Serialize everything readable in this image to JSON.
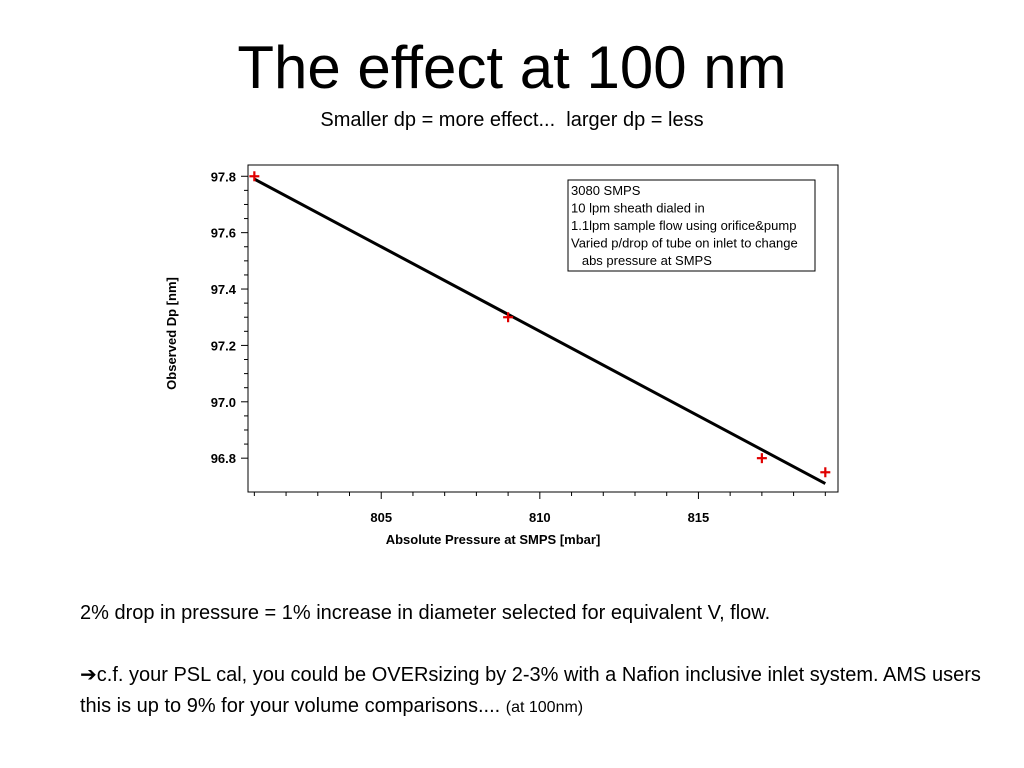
{
  "slide": {
    "title": "The effect at 100 nm",
    "subtitle": "Smaller dp = more effect...  larger dp = less"
  },
  "chart_data": {
    "type": "scatter",
    "xlabel": "Absolute Pressure at SMPS  [mbar]",
    "ylabel": "Observed Dp  [nm]",
    "xlim": [
      800.8,
      819.4
    ],
    "ylim": [
      96.68,
      97.84
    ],
    "x_ticks": [
      805,
      810,
      815
    ],
    "y_ticks": [
      96.8,
      97.0,
      97.2,
      97.4,
      97.6,
      97.8
    ],
    "y_tick_labels": [
      "96.8",
      "97.0",
      "97.2",
      "97.4",
      "97.6",
      "97.8"
    ],
    "series": [
      {
        "marker": "plus",
        "color": "#e00000",
        "x": [
          801.0,
          809.0,
          817.0,
          819.0
        ],
        "y": [
          97.8,
          97.3,
          96.8,
          96.75
        ]
      }
    ],
    "fit_line": {
      "color": "#000000",
      "x": [
        801.0,
        819.0
      ],
      "y": [
        97.79,
        96.71
      ]
    },
    "legend": {
      "placement": "top-right",
      "lines": [
        "3080 SMPS",
        "10 lpm sheath dialed in",
        "1.1lpm sample flow using orifice&pump",
        "Varied p/drop of tube on inlet to change",
        "   abs pressure at SMPS"
      ]
    },
    "grid": false
  },
  "body": {
    "line1": "2% drop in pressure = 1% increase in diameter selected for equivalent V, flow.",
    "arrow": "➔",
    "line2": "c.f. your PSL cal, you could be OVERsizing by 2-3% with a Nafion inclusive inlet system. AMS users this is up to 9% for your volume comparisons....",
    "note": "(at 100nm)"
  }
}
